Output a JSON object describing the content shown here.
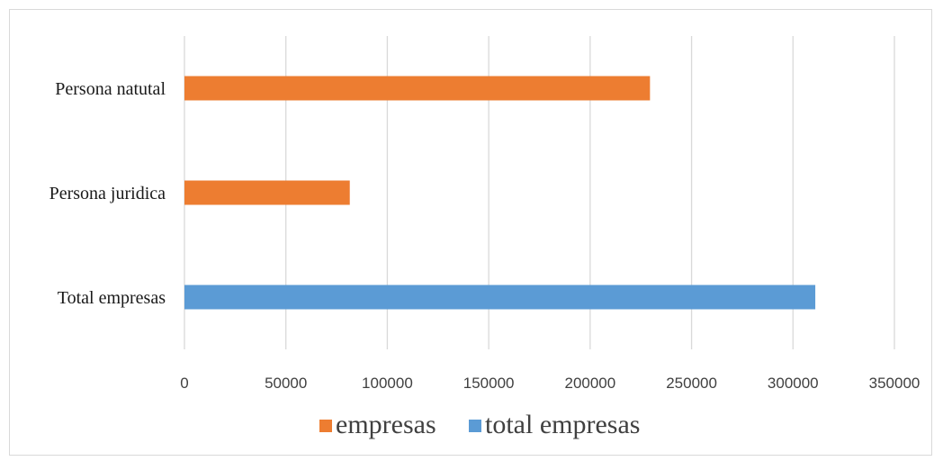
{
  "chart_data": {
    "type": "bar",
    "orientation": "horizontal",
    "categories": [
      "Persona natutal",
      "Persona juridica",
      "Total empresas"
    ],
    "series": [
      {
        "name": "empresas",
        "color": "#ed7d31",
        "values": [
          229500,
          81500,
          null
        ]
      },
      {
        "name": "total empresas",
        "color": "#5b9bd5",
        "values": [
          null,
          null,
          311000
        ]
      }
    ],
    "x_ticks": [
      "0",
      "50000",
      "100000",
      "150000",
      "200000",
      "250000",
      "300000",
      "350000"
    ],
    "xlim": [
      0,
      350000
    ],
    "grid": true,
    "legend_position": "bottom"
  }
}
